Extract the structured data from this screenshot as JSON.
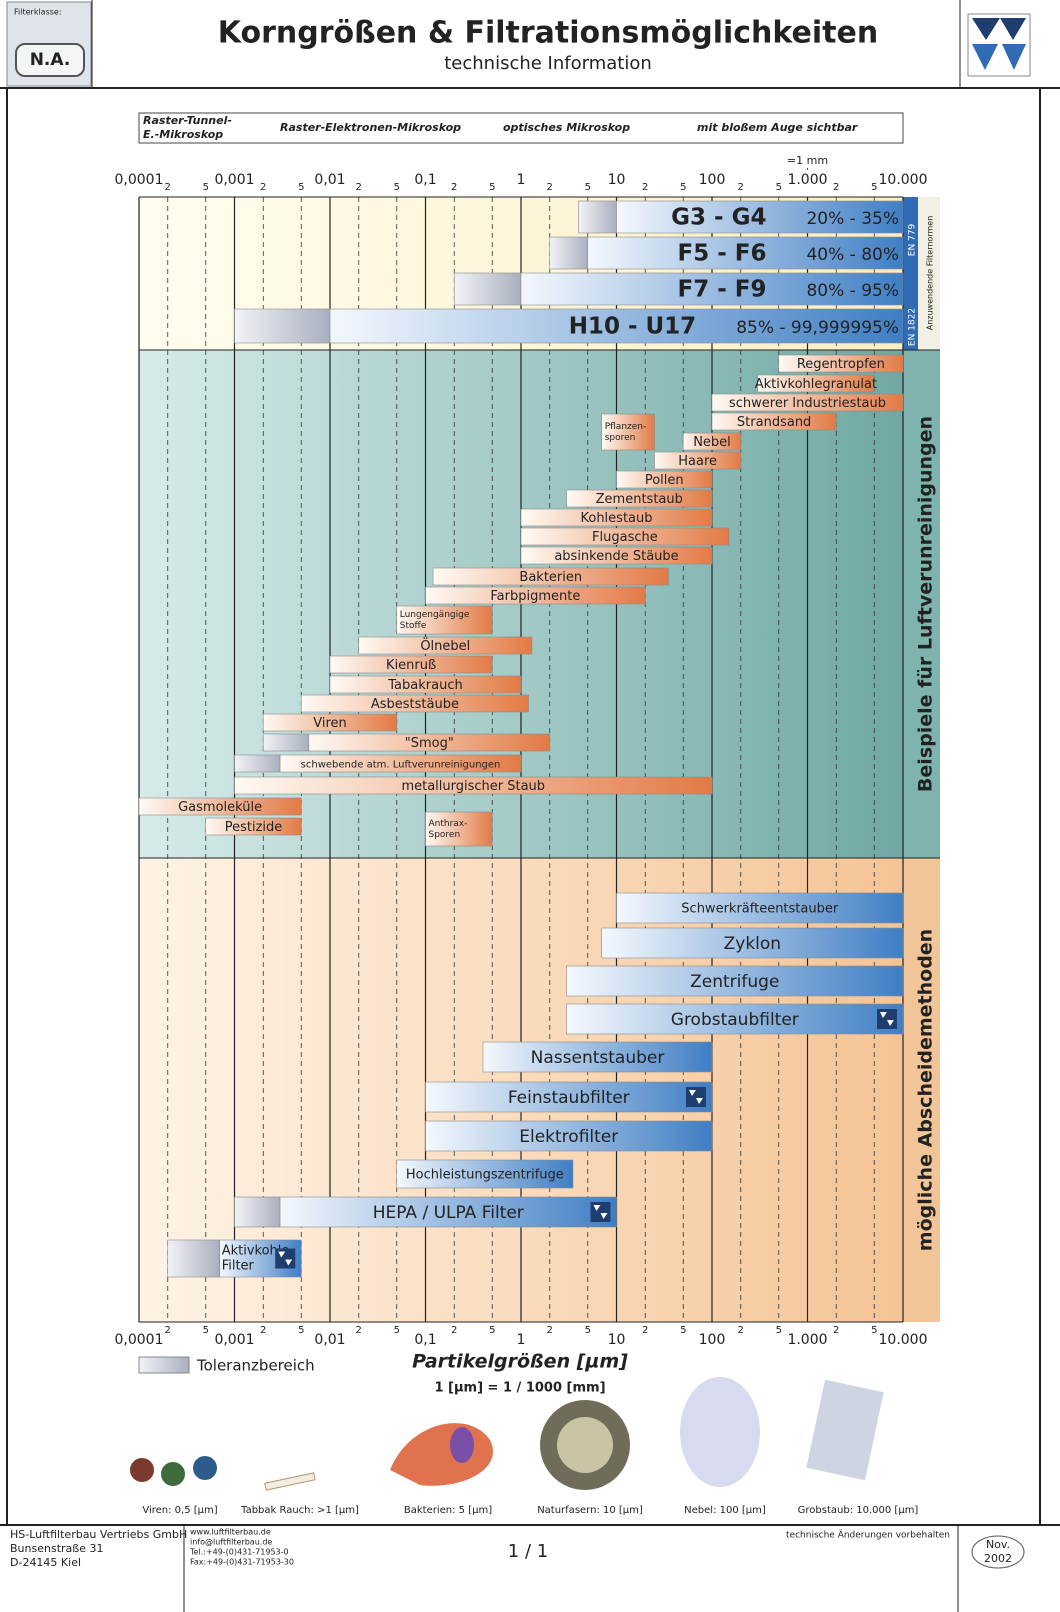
{
  "header": {
    "filter_class_label": "Filterklasse:",
    "filter_class": "N.A.",
    "title": "Korngrößen & Filtrationsmöglichkeiten",
    "subtitle": "technische Information"
  },
  "chart_data": {
    "type": "range-bar",
    "log_x": true,
    "xlim": [
      0.0001,
      10000
    ],
    "xticks": [
      {
        "value": 0.0001,
        "label": "0,0001"
      },
      {
        "value": 0.001,
        "label": "0,001"
      },
      {
        "value": 0.01,
        "label": "0,01"
      },
      {
        "value": 0.1,
        "label": "0,1"
      },
      1,
      10,
      100,
      {
        "value": 1000,
        "label": "1.000"
      },
      {
        "value": 10000,
        "label": "10.000"
      }
    ],
    "minor_xticks": [
      {
        "value": 0.0002,
        "label": "2"
      },
      {
        "value": 0.0005,
        "label": "5"
      },
      {
        "value": 0.002,
        "label": "2"
      },
      {
        "value": 0.005,
        "label": "5"
      },
      {
        "value": 0.02,
        "label": "2"
      },
      {
        "value": 0.05,
        "label": "5"
      },
      {
        "value": 0.2,
        "label": "2"
      },
      {
        "value": 0.5,
        "label": "5"
      },
      2,
      5,
      {
        "value": 20,
        "label": "2"
      },
      {
        "value": 50,
        "label": "5"
      },
      {
        "value": 200,
        "label": "2"
      },
      {
        "value": 500,
        "label": "5"
      },
      {
        "value": 2000,
        "label": "2"
      },
      {
        "value": 5000,
        "label": "5"
      }
    ],
    "mm_marker": {
      "value": 1000,
      "label": "=1 mm"
    },
    "x_label": "Partikelgrößen [µm]",
    "x_note": "1 [µm] = 1 / 1000 [mm]",
    "tolerance_label": "Toleranzbereich",
    "microscopes": [
      [
        "Raster-Tunnel-",
        "E.-Mikroskop"
      ],
      "Raster-Elektronen-Mikroskop",
      "optisches Mikroskop",
      "mit bloßem Auge sichtbar"
    ],
    "filter_classes": {
      "standards": [
        "EN 779",
        "EN 1822"
      ],
      "standards_label": "Anzuwendende Filternormen",
      "bars": [
        {
          "name": "G3 - G4",
          "efficiency": "20% - 35%",
          "tolerance": [
            4,
            10
          ],
          "range": [
            10,
            10000
          ]
        },
        {
          "name": "F5 - F6",
          "efficiency": "40% - 80%",
          "tolerance": [
            2,
            5
          ],
          "range": [
            5,
            10000
          ]
        },
        {
          "name": "F7 - F9",
          "efficiency": "80% - 95%",
          "tolerance": [
            0.2,
            1
          ],
          "range": [
            1,
            10000
          ]
        },
        {
          "name": "H10 - U17",
          "efficiency": "85% - 99,999995%",
          "tolerance": [
            0.001,
            0.01
          ],
          "range": [
            0.01,
            10000
          ]
        }
      ]
    },
    "pollutants": {
      "title": "Beispiele für Luftverunreinigungen",
      "bars": [
        {
          "name": "Regentropfen",
          "range": [
            500,
            10000
          ]
        },
        {
          "name": "Aktivkohlegranulat",
          "range": [
            300,
            5000
          ]
        },
        {
          "name": "schwerer Industriestaub",
          "range": [
            100,
            10000
          ]
        },
        {
          "name": "Strandsand",
          "range": [
            100,
            2000
          ]
        },
        {
          "name": [
            "Pflanzen-",
            "sporen"
          ],
          "range": [
            7,
            25
          ]
        },
        {
          "name": "Nebel",
          "range": [
            50,
            200
          ]
        },
        {
          "name": "Haare",
          "range": [
            25,
            200
          ]
        },
        {
          "name": "Pollen",
          "range": [
            10,
            100
          ]
        },
        {
          "name": "Zementstaub",
          "range": [
            3,
            100
          ]
        },
        {
          "name": "Kohlestaub",
          "range": [
            1,
            100
          ]
        },
        {
          "name": "Flugasche",
          "range": [
            1,
            150
          ]
        },
        {
          "name": "absinkende Stäube",
          "range": [
            1,
            100
          ]
        },
        {
          "name": "Bakterien",
          "range": [
            0.12,
            35
          ]
        },
        {
          "name": "Farbpigmente",
          "range": [
            0.1,
            20
          ]
        },
        {
          "name": [
            "Lungengängige",
            "Stoffe"
          ],
          "range": [
            0.05,
            0.5
          ]
        },
        {
          "name": "Ölnebel",
          "range": [
            0.02,
            1.3
          ]
        },
        {
          "name": "Kienruß",
          "range": [
            0.01,
            0.5
          ]
        },
        {
          "name": "Tabakrauch",
          "range": [
            0.01,
            1
          ]
        },
        {
          "name": "Asbeststäube",
          "range": [
            0.005,
            1.2
          ]
        },
        {
          "name": "Viren",
          "range": [
            0.002,
            0.05
          ]
        },
        {
          "name": "\"Smog\"",
          "tolerance": [
            0.002,
            0.006
          ],
          "range": [
            0.006,
            2
          ]
        },
        {
          "name": "schwebende atm. Luftverunreinigungen",
          "tolerance": [
            0.001,
            0.003
          ],
          "range": [
            0.003,
            1
          ]
        },
        {
          "name": "metallurgischer Staub",
          "range": [
            0.001,
            100
          ]
        },
        {
          "name": "Gasmoleküle",
          "range": [
            0.0001,
            0.005
          ]
        },
        {
          "name": "Pestizide",
          "range": [
            0.0005,
            0.005
          ]
        },
        {
          "name": [
            "Anthrax-",
            "Sporen"
          ],
          "range": [
            0.1,
            0.5
          ]
        }
      ]
    },
    "methods": {
      "title": "mögliche Abscheidemethoden",
      "bars": [
        {
          "name": "Schwerkräfteentstauber",
          "range": [
            10,
            10000
          ]
        },
        {
          "name": "Zyklon",
          "range": [
            7,
            10000
          ]
        },
        {
          "name": "Zentrifuge",
          "range": [
            3,
            10000
          ]
        },
        {
          "name": "Grobstaubfilter",
          "range": [
            3,
            10000
          ],
          "icon": true
        },
        {
          "name": "Nassentstauber",
          "range": [
            0.4,
            100
          ]
        },
        {
          "name": "Feinstaubfilter",
          "range": [
            0.1,
            100
          ],
          "icon": true
        },
        {
          "name": "Elektrofilter",
          "range": [
            0.1,
            100
          ]
        },
        {
          "name": "Hochleistungszentrifuge",
          "range": [
            0.05,
            3.5
          ]
        },
        {
          "name": "HEPA / ULPA Filter",
          "tolerance": [
            0.001,
            0.003
          ],
          "range": [
            0.003,
            10
          ],
          "icon": true
        },
        {
          "name": [
            "Aktivkohle-",
            "Filter"
          ],
          "tolerance": [
            0.0002,
            0.0007
          ],
          "range": [
            0.0007,
            0.005
          ],
          "icon": true
        }
      ]
    }
  },
  "illustrations": [
    "Viren: 0,5 [µm]",
    "Tabbak Rauch: >1 [µm]",
    "Bakterien: 5 [µm]",
    "Naturfasern: 10 [µm]",
    "Nebel: 100 [µm]",
    "Grobstaub: 10.000 [µm]"
  ],
  "footer": {
    "company": [
      "HS-Luftfilterbau Vertriebs GmbH",
      "Bunsenstraße 31",
      "D-24145 Kiel"
    ],
    "contact": [
      "www.luftfilterbau.de",
      "info@luftfilterbau.de",
      "Tel.:+49-(0)431-71953-0",
      "Fax:+49-(0)431-71953-30"
    ],
    "page": "1 / 1",
    "notice": "technische Änderungen vorbehalten",
    "date": [
      "Nov.",
      "2002"
    ]
  }
}
